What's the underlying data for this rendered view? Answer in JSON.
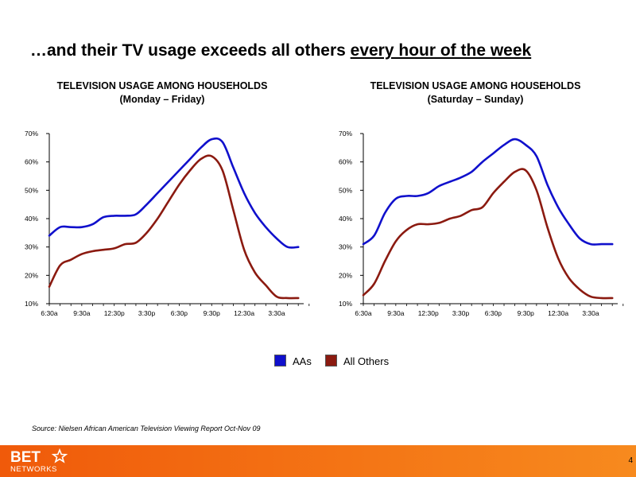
{
  "slide": {
    "title_main": "…and their TV usage exceeds all others ",
    "title_emphasis": "every hour of the week",
    "source": "Source:  Nielsen African American Television Viewing Report Oct-Nov 09",
    "page_number": "4",
    "logo_top": "BET",
    "logo_bottom": "NETWORKS"
  },
  "colors": {
    "aas": "#1010cc",
    "all_others": "#8b1a10",
    "footer": "#f26b12"
  },
  "legend": [
    {
      "label": "AAs",
      "color": "#1010cc"
    },
    {
      "label": "All Others",
      "color": "#8b1a10"
    }
  ],
  "chart_data": [
    {
      "type": "line",
      "title": "TELEVISION USAGE AMONG HOUSEHOLDS",
      "subtitle": "(Monday – Friday)",
      "xlabel": "",
      "ylabel": "",
      "x_tick_labels": [
        "6:30a",
        "9:30a",
        "12:30p",
        "3:30p",
        "6:30p",
        "9:30p",
        "12:30a",
        "3:30a"
      ],
      "x_tick_hour_index": [
        0,
        3,
        6,
        9,
        12,
        15,
        18,
        21
      ],
      "x_range": [
        0,
        23.5
      ],
      "y_tick_labels": [
        "10%",
        "20%",
        "30%",
        "40%",
        "50%",
        "60%",
        "70%"
      ],
      "ylim": [
        10,
        70
      ],
      "grid": false,
      "legend_position": "bottom-center",
      "series": [
        {
          "name": "AAs",
          "color": "#1010cc",
          "x": [
            0,
            1,
            2,
            3,
            4,
            5,
            6,
            7,
            8,
            9,
            10,
            11,
            12,
            13,
            14,
            15,
            16,
            17,
            18,
            19,
            20,
            21,
            22,
            23
          ],
          "values": [
            34,
            37,
            37,
            37,
            38,
            40.5,
            41,
            41,
            41.5,
            45,
            49,
            53,
            57,
            61,
            65,
            68,
            67,
            58,
            49,
            42,
            37,
            33,
            30,
            30
          ]
        },
        {
          "name": "All Others",
          "color": "#8b1a10",
          "x": [
            0,
            1,
            2,
            3,
            4,
            5,
            6,
            7,
            8,
            9,
            10,
            11,
            12,
            13,
            14,
            15,
            16,
            17,
            18,
            19,
            20,
            21,
            22,
            23
          ],
          "values": [
            16,
            23.5,
            25.5,
            27.5,
            28.5,
            29,
            29.5,
            31,
            31.5,
            35,
            40,
            46,
            52,
            57,
            61,
            62,
            57,
            43,
            29,
            21,
            16.5,
            12.5,
            12,
            12
          ]
        }
      ]
    },
    {
      "type": "line",
      "title": "TELEVISION USAGE AMONG HOUSEHOLDS",
      "subtitle": "(Saturday – Sunday)",
      "xlabel": "",
      "ylabel": "",
      "x_tick_labels": [
        "6:30a",
        "9:30a",
        "12:30p",
        "3:30p",
        "6:30p",
        "9:30p",
        "12:30a",
        "3:30a"
      ],
      "x_tick_hour_index": [
        0,
        3,
        6,
        9,
        12,
        15,
        18,
        21
      ],
      "x_range": [
        0,
        23.5
      ],
      "y_tick_labels": [
        "10%",
        "20%",
        "30%",
        "40%",
        "50%",
        "60%",
        "70%"
      ],
      "ylim": [
        10,
        70
      ],
      "grid": false,
      "legend_position": "bottom-center",
      "series": [
        {
          "name": "AAs",
          "color": "#1010cc",
          "x": [
            0,
            1,
            2,
            3,
            4,
            5,
            6,
            7,
            8,
            9,
            10,
            11,
            12,
            13,
            14,
            15,
            16,
            17,
            18,
            19,
            20,
            21,
            22,
            23
          ],
          "values": [
            31,
            34,
            42,
            47,
            48,
            48,
            49,
            51.5,
            53,
            54.5,
            56.5,
            60,
            63,
            66,
            68,
            66,
            62,
            52,
            44,
            38,
            33,
            31,
            31,
            31
          ]
        },
        {
          "name": "All Others",
          "color": "#8b1a10",
          "x": [
            0,
            1,
            2,
            3,
            4,
            5,
            6,
            7,
            8,
            9,
            10,
            11,
            12,
            13,
            14,
            15,
            16,
            17,
            18,
            19,
            20,
            21,
            22,
            23
          ],
          "values": [
            13,
            17,
            25,
            32,
            36,
            38,
            38,
            38.5,
            40,
            41,
            43,
            44,
            49,
            53,
            56.5,
            57,
            50,
            37,
            26,
            19,
            15,
            12.5,
            12,
            12
          ]
        }
      ]
    }
  ]
}
